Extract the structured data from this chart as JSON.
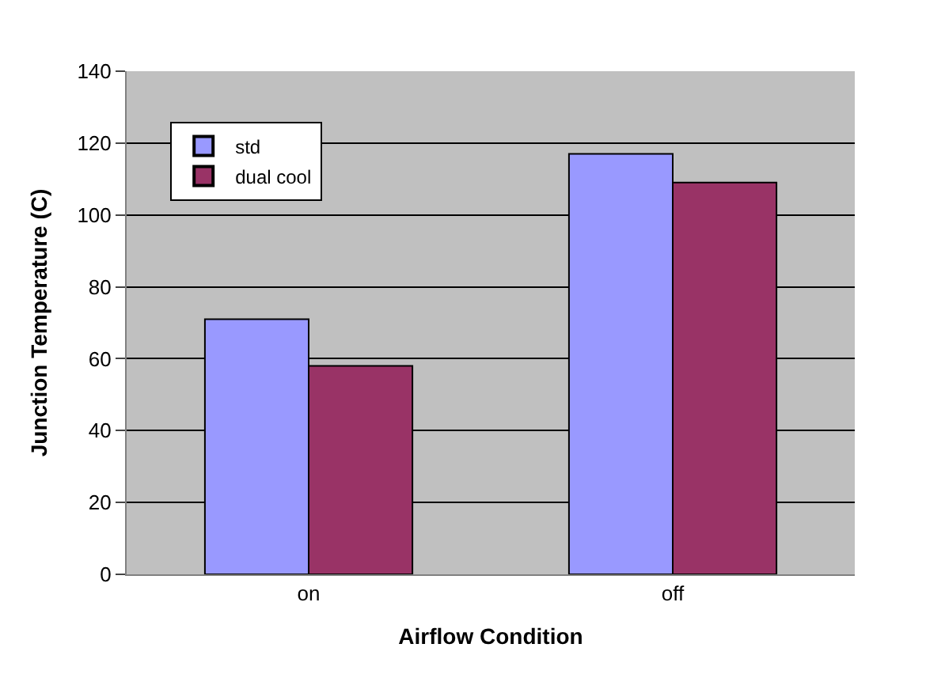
{
  "chart_data": {
    "type": "bar",
    "xlabel": "Airflow Condition",
    "ylabel": "Junction Temperature (C)",
    "categories": [
      "on",
      "off"
    ],
    "series": [
      {
        "name": "std",
        "color": "#9999ff",
        "values": [
          71,
          117
        ]
      },
      {
        "name": "dual cool",
        "color": "#993366",
        "values": [
          58,
          109
        ]
      }
    ],
    "ylim": [
      0,
      140
    ],
    "yticks": [
      0,
      20,
      40,
      60,
      80,
      100,
      120,
      140
    ],
    "grid": "y",
    "legend": "top left"
  }
}
